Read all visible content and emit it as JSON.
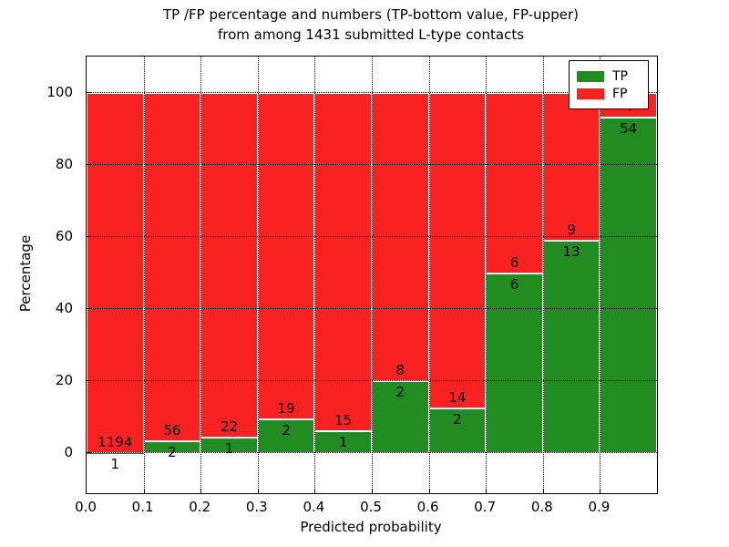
{
  "figure": {
    "title_line1": "TP /FP percentage and numbers (TP-bottom value, FP-upper)",
    "title_line2": "from among 1431 submitted L-type contacts",
    "xlabel": "Predicted probability",
    "ylabel": "Percentage"
  },
  "legend": {
    "position": "upper right",
    "items": [
      {
        "label": "TP",
        "color": "#228b22"
      },
      {
        "label": "FP",
        "color": "#f82222"
      }
    ]
  },
  "chart_data": {
    "type": "bar",
    "variant": "stacked-percentage-histogram",
    "title": "TP /FP percentage and numbers (TP-bottom value, FP-upper) from among 1431 submitted L-type contacts",
    "xlabel": "Predicted probability",
    "ylabel": "Percentage",
    "total_contacts": 1431,
    "bin_edges": [
      0.0,
      0.1,
      0.2,
      0.3,
      0.4,
      0.5,
      0.6,
      0.7,
      0.8,
      0.9,
      1.0
    ],
    "x_tick_labels": [
      "0.0",
      "0.1",
      "0.2",
      "0.3",
      "0.4",
      "0.5",
      "0.6",
      "0.7",
      "0.8",
      "0.9"
    ],
    "y_ticks": [
      0,
      20,
      40,
      60,
      80,
      100
    ],
    "xlim": [
      0.0,
      1.0
    ],
    "ylim": [
      -11,
      110
    ],
    "grid": "dotted",
    "grid_over_bars": true,
    "bar_edge_color": "#ffffff",
    "annotation_note": "FP count printed above TP/FP boundary, TP count below it",
    "series": [
      {
        "name": "TP",
        "color": "#228b22",
        "counts": [
          1,
          2,
          1,
          2,
          1,
          2,
          2,
          6,
          13,
          54
        ]
      },
      {
        "name": "FP",
        "color": "#f82222",
        "counts": [
          1194,
          56,
          22,
          19,
          15,
          8,
          14,
          6,
          9,
          4
        ]
      }
    ],
    "tp_percent_per_bin": [
      0.08,
      3.45,
      4.35,
      9.52,
      6.25,
      20.0,
      12.5,
      50.0,
      59.09,
      93.1
    ]
  }
}
